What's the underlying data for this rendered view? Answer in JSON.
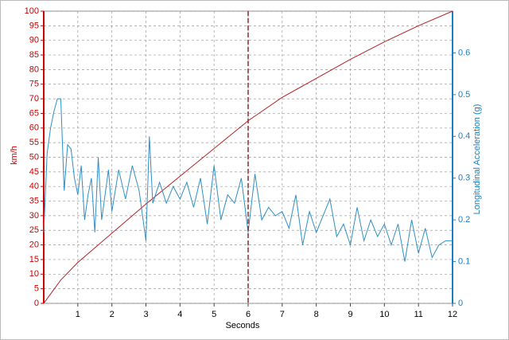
{
  "chart_data": {
    "type": "line",
    "xlabel": "Seconds",
    "ylabel": "km/h",
    "y2label": "Longitudinal Acceleration (g)",
    "xlim": [
      0,
      12
    ],
    "xticks": [
      1,
      2,
      3,
      4,
      5,
      6,
      7,
      8,
      9,
      10,
      11,
      12
    ],
    "ylim": [
      0,
      100
    ],
    "yticks": [
      0,
      5,
      10,
      15,
      20,
      25,
      30,
      35,
      40,
      45,
      50,
      55,
      60,
      65,
      70,
      75,
      80,
      85,
      90,
      95,
      100
    ],
    "y2lim": [
      0,
      0.7
    ],
    "y2ticks": [
      0,
      0.1,
      0.2,
      0.3,
      0.4,
      0.5,
      0.6
    ],
    "ycolor": "#cc0000",
    "y2color": "#1a7fc1",
    "grid": true,
    "cursor_x": 6,
    "series": [
      {
        "color": "#b22222",
        "x": [
          0,
          0.25,
          0.5,
          1,
          1.5,
          2,
          3,
          4,
          5,
          6,
          7,
          8,
          9,
          10,
          11,
          12
        ],
        "values": [
          0,
          4,
          8,
          14,
          19,
          24,
          34,
          43.5,
          53,
          62.5,
          70.5,
          77,
          83.5,
          89.5,
          95,
          100
        ]
      },
      {
        "color": "#2f8fc4",
        "axis": "y2",
        "x": [
          0,
          0.1,
          0.2,
          0.3,
          0.4,
          0.5,
          0.6,
          0.7,
          0.8,
          0.9,
          1.0,
          1.1,
          1.2,
          1.3,
          1.4,
          1.5,
          1.6,
          1.7,
          1.8,
          1.9,
          2.0,
          2.2,
          2.4,
          2.6,
          2.8,
          3.0,
          3.1,
          3.2,
          3.4,
          3.6,
          3.8,
          4.0,
          4.2,
          4.4,
          4.6,
          4.8,
          5.0,
          5.2,
          5.4,
          5.6,
          5.8,
          6.0,
          6.2,
          6.4,
          6.6,
          6.8,
          7.0,
          7.2,
          7.4,
          7.6,
          7.8,
          8.0,
          8.2,
          8.4,
          8.6,
          8.8,
          9.0,
          9.2,
          9.4,
          9.6,
          9.8,
          10.0,
          10.2,
          10.4,
          10.6,
          10.8,
          11.0,
          11.2,
          11.4,
          11.6,
          11.8,
          12.0
        ],
        "values": [
          0.17,
          0.36,
          0.42,
          0.46,
          0.49,
          0.49,
          0.27,
          0.38,
          0.37,
          0.3,
          0.26,
          0.33,
          0.2,
          0.26,
          0.3,
          0.17,
          0.35,
          0.2,
          0.26,
          0.32,
          0.22,
          0.32,
          0.25,
          0.33,
          0.27,
          0.15,
          0.4,
          0.24,
          0.29,
          0.24,
          0.28,
          0.25,
          0.29,
          0.23,
          0.3,
          0.19,
          0.33,
          0.2,
          0.26,
          0.24,
          0.3,
          0.17,
          0.31,
          0.2,
          0.23,
          0.21,
          0.22,
          0.18,
          0.26,
          0.14,
          0.22,
          0.17,
          0.21,
          0.25,
          0.16,
          0.19,
          0.14,
          0.23,
          0.15,
          0.2,
          0.16,
          0.19,
          0.14,
          0.19,
          0.1,
          0.2,
          0.12,
          0.18,
          0.11,
          0.14,
          0.15,
          0.15
        ]
      }
    ]
  }
}
